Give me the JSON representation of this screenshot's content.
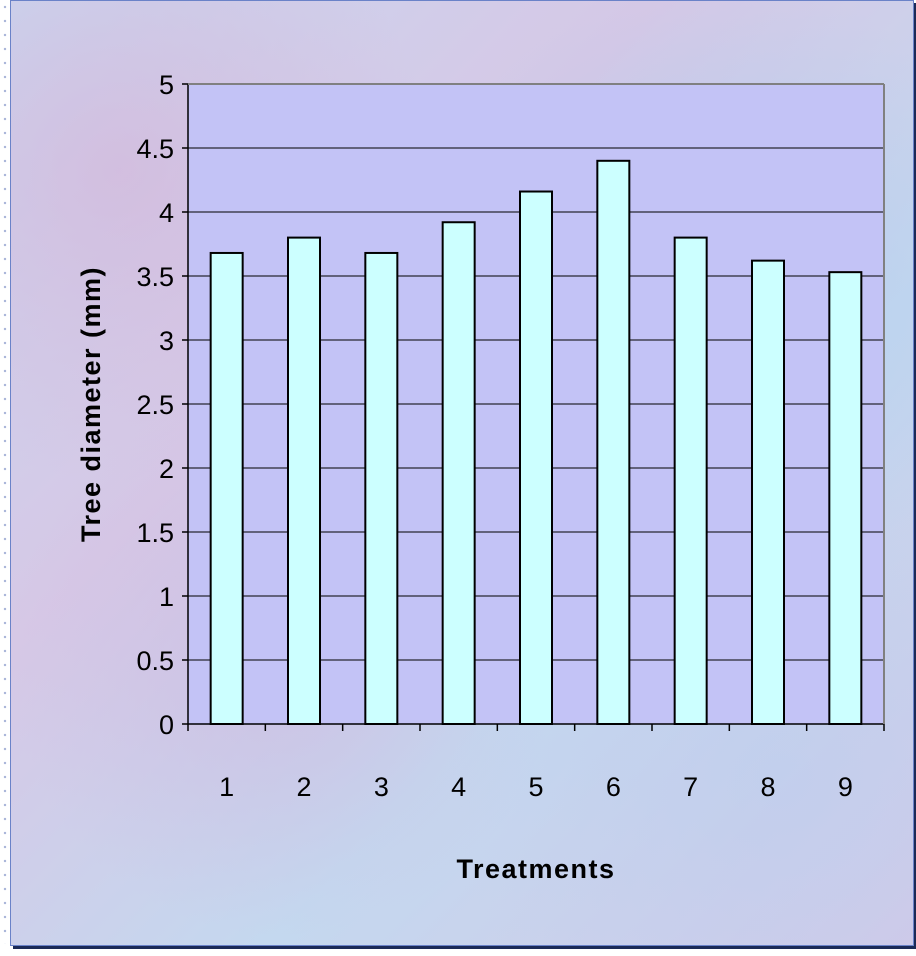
{
  "chart_data": {
    "type": "bar",
    "categories": [
      "1",
      "2",
      "3",
      "4",
      "5",
      "6",
      "7",
      "8",
      "9"
    ],
    "values": [
      3.68,
      3.8,
      3.68,
      3.92,
      4.16,
      4.4,
      3.8,
      3.62,
      3.53
    ],
    "xlabel": "Treatments",
    "ylabel": "Tree diameter (mm)",
    "ylim": [
      0,
      5
    ],
    "yticks": [
      "0",
      "0.5",
      "1",
      "1.5",
      "2",
      "2.5",
      "3",
      "3.5",
      "4",
      "4.5",
      "5"
    ],
    "grid": true,
    "legend": "none",
    "colors": {
      "bar_fill": "#ccffff",
      "bar_stroke": "#000000",
      "plot_area": "#c3c3f6",
      "gridline": "#000000"
    }
  }
}
